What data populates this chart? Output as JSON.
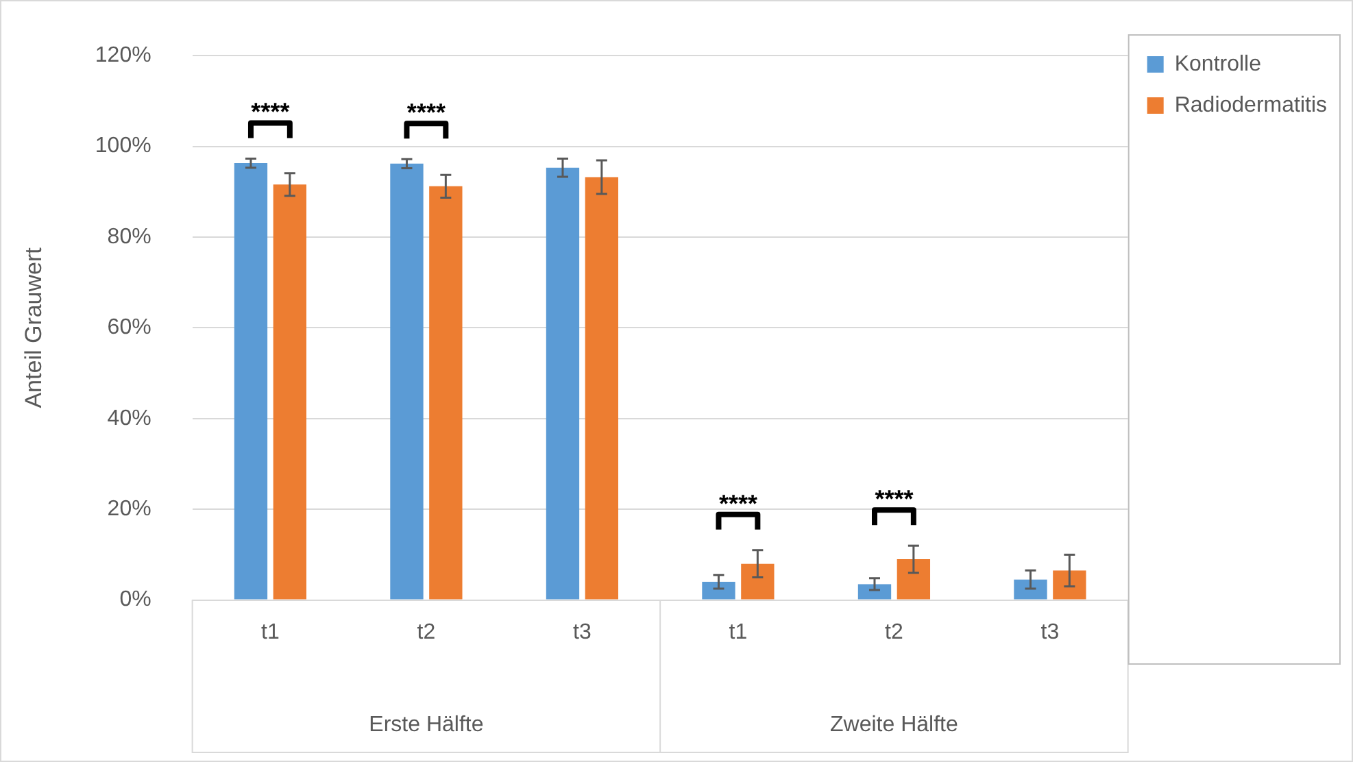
{
  "chart_data": {
    "type": "bar",
    "ylabel": "Anteil Grauwert",
    "categories": [
      "t1",
      "t2",
      "t3",
      "t1",
      "t2",
      "t3"
    ],
    "series": [
      {
        "name": "Kontrolle",
        "color": "#5b9bd5",
        "values": [
          96.3,
          96.2,
          95.3,
          4,
          3.5,
          4.5
        ],
        "errors": [
          1,
          1,
          2,
          1.5,
          1.3,
          2
        ]
      },
      {
        "name": "Radiodermatitis",
        "color": "#ed7d31",
        "values": [
          91.6,
          91.2,
          93.2,
          8,
          9,
          6.5
        ],
        "errors": [
          2.5,
          2.5,
          3.7,
          3,
          3,
          3.5
        ]
      }
    ],
    "ylim": [
      0,
      120
    ],
    "yticks": [
      {
        "value": 0,
        "label": "0%"
      },
      {
        "value": 20,
        "label": "20%"
      },
      {
        "value": 40,
        "label": "40%"
      },
      {
        "value": 60,
        "label": "60%"
      },
      {
        "value": 80,
        "label": "80%"
      },
      {
        "value": 100,
        "label": "100%"
      },
      {
        "value": 120,
        "label": "120%"
      }
    ],
    "grid": "y",
    "legend": "top right",
    "annotations": [
      "Erste Hälfte",
      "Zweite Hälfte",
      "****",
      "****",
      "****",
      "****"
    ]
  }
}
